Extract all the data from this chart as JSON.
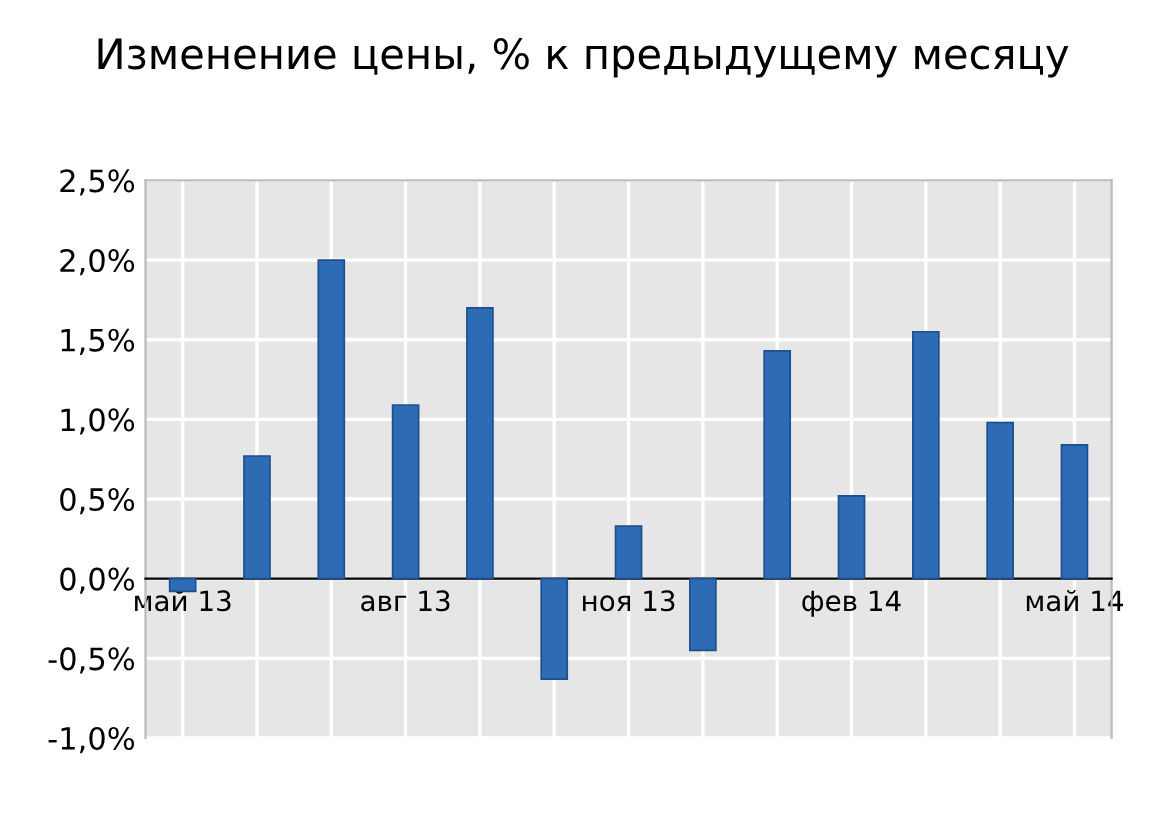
{
  "chart_data": {
    "type": "bar",
    "title": "Изменение цены, % к предыдущему месяцу",
    "categories": [
      "май 13",
      null,
      null,
      "авг 13",
      null,
      null,
      "ноя 13",
      null,
      null,
      "фев 14",
      null,
      null,
      "май 14"
    ],
    "values": [
      -0.08,
      0.77,
      2.0,
      1.09,
      1.7,
      -0.63,
      0.33,
      -0.45,
      1.43,
      0.52,
      1.55,
      0.98,
      0.84
    ],
    "color": "#2e6bb5",
    "ylim": [
      -1.0,
      2.5
    ],
    "yticks": [
      {
        "value": -1.0,
        "label": "-1,0%"
      },
      {
        "value": -0.5,
        "label": "-0,5%"
      },
      {
        "value": 0.0,
        "label": "0,0%"
      },
      {
        "value": 0.5,
        "label": "0,5%"
      },
      {
        "value": 1.0,
        "label": "1,0%"
      },
      {
        "value": 1.5,
        "label": "1,5%"
      },
      {
        "value": 2.0,
        "label": "2,0%"
      },
      {
        "value": 2.5,
        "label": "2,5%"
      }
    ],
    "grid": true
  }
}
